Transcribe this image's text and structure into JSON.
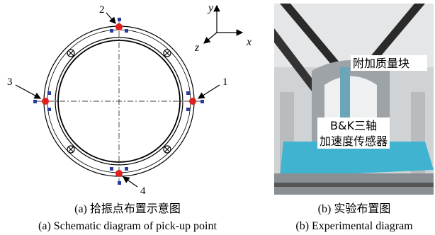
{
  "panel_a": {
    "points": [
      {
        "label": "1"
      },
      {
        "label": "2"
      },
      {
        "label": "3"
      },
      {
        "label": "4"
      }
    ],
    "axes": {
      "y": "y",
      "z": "z",
      "x": "x"
    },
    "caption_cn": "(a) 拾振点布置示意图",
    "caption_en": "(a) Schematic diagram of pick-up point"
  },
  "panel_b": {
    "labels": [
      "附加质量块",
      "B&K三轴",
      "加速度传感器"
    ],
    "caption_cn": "(b) 实验布置图",
    "caption_en": "(b) Experimental diagram"
  }
}
